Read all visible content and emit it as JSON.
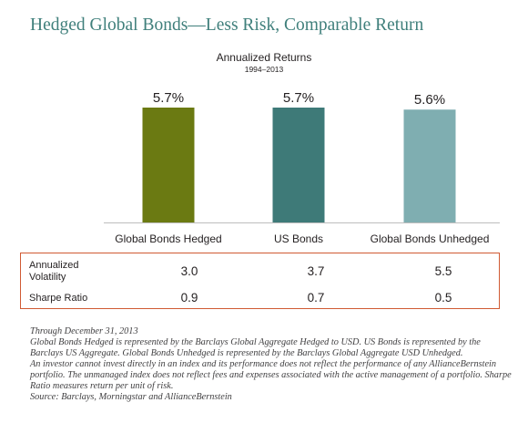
{
  "header": {
    "title": "Hedged Global Bonds—Less Risk, Comparable Return",
    "chart_title": "Annualized Returns",
    "chart_subtitle": "1994–2013"
  },
  "chart_data": {
    "type": "bar",
    "title": "Annualized Returns",
    "subtitle": "1994–2013",
    "categories": [
      "Global Bonds Hedged",
      "US Bonds",
      "Global Bonds Unhedged"
    ],
    "values": [
      5.7,
      5.7,
      5.6
    ],
    "value_labels": [
      "5.7%",
      "5.7%",
      "5.6%"
    ],
    "colors": [
      "#6b7a12",
      "#3e7a78",
      "#7faeb1"
    ],
    "ylim": [
      0,
      5.7
    ],
    "grid": false
  },
  "stats": {
    "rows": [
      {
        "label_lines": [
          "Annualized",
          "Volatility"
        ],
        "values": [
          "3.0",
          "3.7",
          "5.5"
        ]
      },
      {
        "label_lines": [
          "Sharpe Ratio"
        ],
        "values": [
          "0.9",
          "0.7",
          "0.5"
        ]
      }
    ]
  },
  "notes": [
    "Through December 31, 2013",
    "Global Bonds Hedged is represented by the Barclays Global Aggregate Hedged to USD. US Bonds is represented by the Barclays US Aggregate. Global Bonds Unhedged is represented by the Barclays Global Aggregate USD Unhedged.",
    "An investor cannot invest directly in an index and its performance does not reflect the performance of any AllianceBernstein portfolio. The unmanaged index does not reflect fees and expenses associated with the active management of a portfolio. Sharpe Ratio measures return per unit of risk.",
    "Source: Barclays, Morningstar and AllianceBernstein"
  ]
}
